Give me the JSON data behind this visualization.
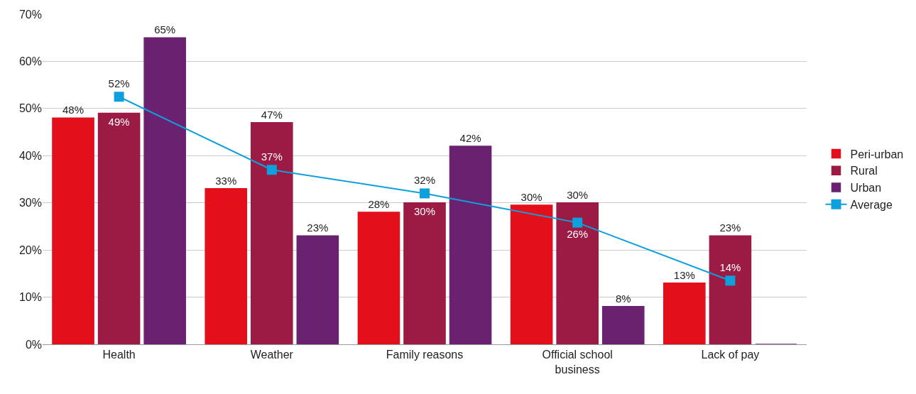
{
  "chart_data": {
    "type": "bar",
    "categories": [
      "Health",
      "Weather",
      "Family reasons",
      "Official school business",
      "Lack of pay"
    ],
    "series": [
      {
        "name": "Peri-urban",
        "color": "#e30f1b",
        "values": [
          48,
          33,
          28,
          29.5,
          13
        ],
        "value_labels": [
          "48%",
          "33%",
          "28%",
          "30%",
          "13%"
        ]
      },
      {
        "name": "Rural",
        "color": "#9b1b45",
        "values": [
          49,
          47,
          30,
          30,
          23
        ],
        "value_labels": [
          "49%",
          "47%",
          "30%",
          "30%",
          "23%"
        ]
      },
      {
        "name": "Urban",
        "color": "#6a2270",
        "values": [
          65,
          23,
          42,
          8,
          0
        ],
        "value_labels": [
          "65%",
          "23%",
          "42%",
          "8%",
          null
        ]
      },
      {
        "name": "Average",
        "type": "line",
        "color": "#0ea0dc",
        "marker": "square",
        "values": [
          52.5,
          37,
          32,
          25.8,
          13.5
        ],
        "value_labels": [
          "52%",
          "37%",
          "32%",
          "26%",
          "14%"
        ]
      }
    ],
    "ylim": [
      0,
      70
    ],
    "yticks": [
      {
        "value": 0,
        "label": "0%"
      },
      {
        "value": 10,
        "label": "10%"
      },
      {
        "value": 20,
        "label": "20%"
      },
      {
        "value": 30,
        "label": "30%"
      },
      {
        "value": 40,
        "label": "40%"
      },
      {
        "value": 50,
        "label": "50%"
      },
      {
        "value": 60,
        "label": "60%"
      },
      {
        "value": 70,
        "label": "70%"
      }
    ],
    "grid": "y",
    "legend": "right"
  }
}
